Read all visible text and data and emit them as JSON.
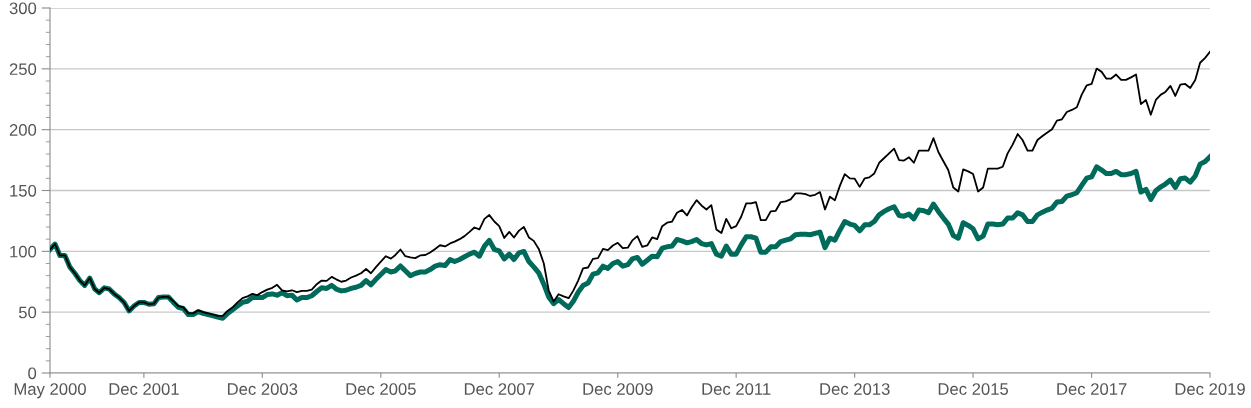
{
  "chart_data": {
    "type": "line",
    "x": [
      "2000-05",
      "2000-06",
      "2000-07",
      "2000-08",
      "2000-09",
      "2000-10",
      "2000-11",
      "2000-12",
      "2001-01",
      "2001-02",
      "2001-03",
      "2001-04",
      "2001-05",
      "2001-06",
      "2001-07",
      "2001-08",
      "2001-09",
      "2001-10",
      "2001-11",
      "2001-12",
      "2002-01",
      "2002-02",
      "2002-03",
      "2002-04",
      "2002-05",
      "2002-06",
      "2002-07",
      "2002-08",
      "2002-09",
      "2002-10",
      "2002-11",
      "2002-12",
      "2003-01",
      "2003-02",
      "2003-03",
      "2003-04",
      "2003-05",
      "2003-06",
      "2003-07",
      "2003-08",
      "2003-09",
      "2003-10",
      "2003-11",
      "2003-12",
      "2004-01",
      "2004-02",
      "2004-03",
      "2004-04",
      "2004-05",
      "2004-06",
      "2004-07",
      "2004-08",
      "2004-09",
      "2004-10",
      "2004-11",
      "2004-12",
      "2005-01",
      "2005-02",
      "2005-03",
      "2005-04",
      "2005-05",
      "2005-06",
      "2005-07",
      "2005-08",
      "2005-09",
      "2005-10",
      "2005-11",
      "2005-12",
      "2006-01",
      "2006-02",
      "2006-03",
      "2006-04",
      "2006-05",
      "2006-06",
      "2006-07",
      "2006-08",
      "2006-09",
      "2006-10",
      "2006-11",
      "2006-12",
      "2007-01",
      "2007-02",
      "2007-03",
      "2007-04",
      "2007-05",
      "2007-06",
      "2007-07",
      "2007-08",
      "2007-09",
      "2007-10",
      "2007-11",
      "2007-12",
      "2008-01",
      "2008-02",
      "2008-03",
      "2008-04",
      "2008-05",
      "2008-06",
      "2008-07",
      "2008-08",
      "2008-09",
      "2008-10",
      "2008-11",
      "2008-12",
      "2009-01",
      "2009-02",
      "2009-03",
      "2009-04",
      "2009-05",
      "2009-06",
      "2009-07",
      "2009-08",
      "2009-09",
      "2009-10",
      "2009-11",
      "2009-12",
      "2010-01",
      "2010-02",
      "2010-03",
      "2010-04",
      "2010-05",
      "2010-06",
      "2010-07",
      "2010-08",
      "2010-09",
      "2010-10",
      "2010-11",
      "2010-12",
      "2011-01",
      "2011-02",
      "2011-03",
      "2011-04",
      "2011-05",
      "2011-06",
      "2011-07",
      "2011-08",
      "2011-09",
      "2011-10",
      "2011-11",
      "2011-12",
      "2012-01",
      "2012-02",
      "2012-03",
      "2012-04",
      "2012-05",
      "2012-06",
      "2012-07",
      "2012-08",
      "2012-09",
      "2012-10",
      "2012-11",
      "2012-12",
      "2013-01",
      "2013-02",
      "2013-03",
      "2013-04",
      "2013-05",
      "2013-06",
      "2013-07",
      "2013-08",
      "2013-09",
      "2013-10",
      "2013-11",
      "2013-12",
      "2014-01",
      "2014-02",
      "2014-03",
      "2014-04",
      "2014-05",
      "2014-06",
      "2014-07",
      "2014-08",
      "2014-09",
      "2014-10",
      "2014-11",
      "2014-12",
      "2015-01",
      "2015-02",
      "2015-03",
      "2015-04",
      "2015-05",
      "2015-06",
      "2015-07",
      "2015-08",
      "2015-09",
      "2015-10",
      "2015-11",
      "2015-12",
      "2016-01",
      "2016-02",
      "2016-03",
      "2016-04",
      "2016-05",
      "2016-06",
      "2016-07",
      "2016-08",
      "2016-09",
      "2016-10",
      "2016-11",
      "2016-12",
      "2017-01",
      "2017-02",
      "2017-03",
      "2017-04",
      "2017-05",
      "2017-06",
      "2017-07",
      "2017-08",
      "2017-09",
      "2017-10",
      "2017-11",
      "2017-12",
      "2018-01",
      "2018-02",
      "2018-03",
      "2018-04",
      "2018-05",
      "2018-06",
      "2018-07",
      "2018-08",
      "2018-09",
      "2018-10",
      "2018-11",
      "2018-12",
      "2019-01",
      "2019-02",
      "2019-03",
      "2019-04",
      "2019-05",
      "2019-06",
      "2019-07",
      "2019-08",
      "2019-09",
      "2019-10",
      "2019-11",
      "2019-12"
    ],
    "series": [
      {
        "color": "#006b5b",
        "values": [
          101.5,
          106,
          96.6,
          96.6,
          87,
          82,
          76,
          72,
          78,
          69,
          66,
          70,
          69,
          65,
          62,
          58,
          51,
          55,
          58,
          58,
          56.5,
          57,
          62,
          62.5,
          62.5,
          58,
          54,
          53,
          48,
          48,
          50.5,
          49,
          48,
          47,
          46,
          45,
          49,
          52,
          55,
          58,
          59,
          62,
          62,
          62,
          64.5,
          65,
          64,
          66,
          63.5,
          64,
          60,
          62,
          62,
          63.5,
          67,
          70,
          69.5,
          72,
          69,
          67.5,
          68,
          69.5,
          70.5,
          72,
          76,
          72.5,
          77,
          81,
          85,
          83,
          84,
          88,
          84,
          80,
          81.8,
          83,
          83,
          85,
          87.8,
          89,
          88.3,
          93.3,
          91.6,
          93.3,
          95.5,
          97.7,
          99.3,
          96,
          104.3,
          109,
          101.5,
          100.4,
          93.8,
          97.7,
          93.3,
          98.8,
          99.9,
          91.6,
          87.2,
          82.3,
          73,
          62.5,
          57,
          60.4,
          57,
          53.8,
          58.7,
          66.4,
          71.9,
          74,
          81.2,
          82.3,
          87.8,
          86,
          90,
          91.6,
          87.8,
          89,
          93.8,
          95,
          89.4,
          92.7,
          96,
          95.5,
          102.6,
          103.7,
          104.3,
          109.7,
          108.6,
          107,
          108,
          109.7,
          106.4,
          105.3,
          106.4,
          97.7,
          96,
          104.3,
          97.7,
          97.7,
          105.3,
          112,
          112,
          110.8,
          99.3,
          99.3,
          103.7,
          103.7,
          108,
          109.2,
          110.3,
          113.6,
          114,
          114,
          113.6,
          114.7,
          115.8,
          103,
          110.8,
          109.2,
          117.4,
          124.5,
          122.4,
          121.3,
          116.9,
          121.8,
          121.8,
          124.5,
          130,
          132.8,
          135,
          136.6,
          129.5,
          128.9,
          130.6,
          126.7,
          133.9,
          133.3,
          131.7,
          138.8,
          132.8,
          127.3,
          122.4,
          113,
          110.8,
          123.5,
          121.3,
          118.5,
          110.3,
          112.5,
          122.4,
          122.4,
          121.8,
          122.4,
          127.3,
          127.3,
          131.7,
          130,
          124.5,
          124.5,
          130,
          132.2,
          133.9,
          135.5,
          140.5,
          141,
          145.4,
          146.5,
          148.2,
          154.2,
          160.2,
          161.3,
          169.5,
          166.8,
          164,
          164,
          165.7,
          163,
          163,
          164,
          165.7,
          148.7,
          150.9,
          142.7,
          149.8,
          153,
          155.3,
          158.6,
          152.5,
          159.7,
          160.2,
          156.9,
          161.9,
          171.7,
          173.9,
          177.8
        ]
      },
      {
        "color": "#000000",
        "values": [
          101.5,
          106,
          96.6,
          96.6,
          87,
          82,
          76,
          72,
          78,
          69,
          66,
          70,
          69,
          65,
          62,
          58,
          51,
          55,
          58,
          58,
          56.5,
          57,
          62,
          62.5,
          62.5,
          59,
          55,
          54,
          49,
          49,
          51.5,
          50,
          49,
          48,
          47,
          47,
          51,
          54,
          58,
          61.5,
          63,
          65,
          64,
          66.5,
          68.5,
          70,
          72.5,
          68,
          67,
          68,
          66.5,
          67.5,
          67.5,
          68.5,
          73,
          76,
          75.7,
          79,
          77,
          75,
          76,
          78.5,
          80,
          82,
          85.5,
          82,
          87,
          91.6,
          96,
          94,
          97,
          101.5,
          96,
          95,
          94.4,
          96.6,
          97,
          99,
          102,
          105,
          104,
          106.5,
          108,
          110,
          112.5,
          116,
          119.6,
          118,
          126.7,
          129.8,
          124.5,
          120.7,
          111,
          116,
          111.4,
          117,
          120,
          111.4,
          108.6,
          102,
          90,
          68,
          58.7,
          64.7,
          63,
          61.5,
          67.5,
          76,
          86,
          86.7,
          93.8,
          94.4,
          102,
          101,
          104.8,
          107,
          102.6,
          103,
          109,
          112.5,
          103.7,
          104.8,
          111.4,
          110,
          120.7,
          123.5,
          124.5,
          131.7,
          134,
          129.5,
          136,
          142,
          137.7,
          134.4,
          138,
          118,
          115,
          126.7,
          119,
          120.7,
          128.4,
          139.4,
          139.4,
          140.5,
          125.6,
          125.6,
          132.8,
          133.3,
          140.5,
          141,
          142.7,
          147.6,
          147.6,
          147,
          145.5,
          146.5,
          148.7,
          134.4,
          144.9,
          142,
          154,
          163.5,
          160,
          159.7,
          153,
          160,
          160.8,
          164,
          172.8,
          176.7,
          180.5,
          184.4,
          175,
          174.6,
          177.3,
          172.8,
          182.7,
          182.7,
          182.7,
          193,
          181.6,
          174,
          166.8,
          152.5,
          149.2,
          167.4,
          165.7,
          163.5,
          149.2,
          152.5,
          168,
          168,
          168,
          169.5,
          180.5,
          187.7,
          196.4,
          191.5,
          182.7,
          182.7,
          191.5,
          194.8,
          197.5,
          200.3,
          207.4,
          208.5,
          214.5,
          216.2,
          218.4,
          228.8,
          236.5,
          237.6,
          250.2,
          247.5,
          242,
          242,
          245.3,
          240.9,
          240.9,
          243,
          245.3,
          221,
          224.4,
          212.3,
          224.4,
          228.8,
          231,
          236,
          227.7,
          237,
          237.6,
          234.3,
          240.9,
          255,
          259,
          264
        ]
      }
    ],
    "xlim": [
      "2000-05",
      "2019-12"
    ],
    "xticks": [
      {
        "value": "2000-05",
        "label": "May 2000"
      },
      {
        "value": "2001-12",
        "label": "Dec 2001"
      },
      {
        "value": "2003-12",
        "label": "Dec 2003"
      },
      {
        "value": "2005-12",
        "label": "Dec 2005"
      },
      {
        "value": "2007-12",
        "label": "Dec 2007"
      },
      {
        "value": "2009-12",
        "label": "Dec 2009"
      },
      {
        "value": "2011-12",
        "label": "Dec 2011"
      },
      {
        "value": "2013-12",
        "label": "Dec 2013"
      },
      {
        "value": "2015-12",
        "label": "Dec 2015"
      },
      {
        "value": "2017-12",
        "label": "Dec 2017"
      },
      {
        "value": "2019-12",
        "label": "Dec 2019"
      }
    ],
    "ylim": [
      0,
      300
    ],
    "yticks": [
      0,
      {
        "value": 10,
        "label": null
      },
      {
        "value": 20,
        "label": null
      },
      {
        "value": 30,
        "label": null
      },
      {
        "value": 40,
        "label": null
      },
      50,
      {
        "value": 60,
        "label": null
      },
      {
        "value": 70,
        "label": null
      },
      {
        "value": 80,
        "label": null
      },
      {
        "value": 90,
        "label": null
      },
      100,
      {
        "value": 110,
        "label": null
      },
      {
        "value": 120,
        "label": null
      },
      {
        "value": 130,
        "label": null
      },
      {
        "value": 140,
        "label": null
      },
      150,
      {
        "value": 160,
        "label": null
      },
      {
        "value": 170,
        "label": null
      },
      {
        "value": 180,
        "label": null
      },
      {
        "value": 190,
        "label": null
      },
      200,
      {
        "value": 210,
        "label": null
      },
      {
        "value": 220,
        "label": null
      },
      {
        "value": 230,
        "label": null
      },
      {
        "value": 240,
        "label": null
      },
      250,
      {
        "value": 260,
        "label": null
      },
      {
        "value": 270,
        "label": null
      },
      {
        "value": 280,
        "label": null
      },
      {
        "value": 290,
        "label": null
      },
      300
    ],
    "grid": "y",
    "marker": "none",
    "line_style": "solid"
  }
}
